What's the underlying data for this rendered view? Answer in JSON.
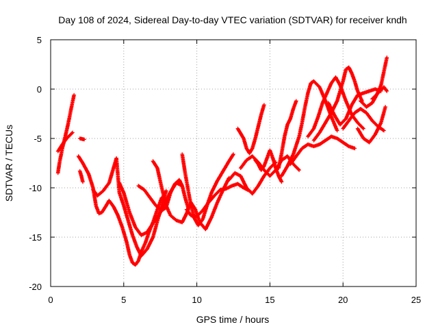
{
  "chart_data": {
    "type": "scatter",
    "title": "Day 108 of 2024, Sidereal Day-to-day VTEC variation (SDTVAR) for receiver kndh",
    "xlabel": "GPS time / hours",
    "ylabel": "SDTVAR / TECUs",
    "xlim": [
      0,
      25
    ],
    "ylim": [
      -20,
      5
    ],
    "x_ticks": [
      0,
      5,
      10,
      15,
      20,
      25
    ],
    "y_ticks": [
      -20,
      -15,
      -10,
      -5,
      0,
      5
    ],
    "grid": true,
    "marker": "+",
    "color": "#ff0000",
    "series": [
      {
        "x": [
          0.5,
          0.6,
          0.8,
          1.0,
          1.2,
          1.4,
          1.6
        ],
        "y": [
          -8.5,
          -7.5,
          -6.0,
          -4.8,
          -3.5,
          -2.0,
          -0.6
        ]
      },
      {
        "x": [
          0.5,
          0.8,
          1.1,
          1.5
        ],
        "y": [
          -6.3,
          -5.6,
          -5.0,
          -4.4
        ]
      },
      {
        "x": [
          2.0,
          2.3
        ],
        "y": [
          -5.0,
          -5.1
        ]
      },
      {
        "x": [
          2.0,
          2.1,
          2.2
        ],
        "y": [
          -8.3,
          -8.8,
          -9.4
        ]
      },
      {
        "x": [
          1.9,
          2.2,
          2.6,
          2.9,
          3.1,
          3.3,
          3.5,
          3.8,
          4.0,
          4.3,
          4.6,
          4.9,
          5.2,
          5.4,
          5.6,
          5.8,
          6.0,
          6.2,
          6.5,
          6.7,
          7.0,
          7.3,
          7.6
        ],
        "y": [
          -6.8,
          -7.5,
          -8.6,
          -10.0,
          -11.8,
          -12.6,
          -12.5,
          -11.8,
          -11.3,
          -11.9,
          -12.8,
          -14.0,
          -15.5,
          -16.8,
          -17.6,
          -17.8,
          -17.4,
          -16.5,
          -15.5,
          -14.6,
          -13.5,
          -12.2,
          -11.0
        ]
      },
      {
        "x": [
          2.9,
          3.2,
          3.6,
          4.0,
          4.3,
          4.5,
          4.7,
          5.0,
          5.3,
          5.6,
          5.9,
          6.2,
          6.6,
          7.0,
          7.3,
          7.6,
          7.9
        ],
        "y": [
          -10.2,
          -10.8,
          -10.3,
          -9.5,
          -8.0,
          -7.0,
          -10.5,
          -11.8,
          -13.3,
          -14.8,
          -16.0,
          -16.9,
          -16.2,
          -15.0,
          -13.4,
          -11.8,
          -10.3
        ]
      },
      {
        "x": [
          4.7,
          5.0,
          5.4,
          5.8,
          6.2,
          6.6,
          7.0,
          7.4,
          7.8,
          8.2,
          8.6,
          9.0
        ],
        "y": [
          -9.5,
          -10.5,
          -12.5,
          -14.0,
          -14.8,
          -14.5,
          -13.6,
          -12.8,
          -11.6,
          -10.4,
          -9.5,
          -9.8
        ]
      },
      {
        "x": [
          6.0,
          6.4,
          6.8,
          7.2,
          7.6,
          7.9,
          8.2,
          8.5,
          8.8,
          9.0,
          9.2,
          9.4
        ],
        "y": [
          -9.8,
          -10.2,
          -11.0,
          -11.8,
          -12.3,
          -12.0,
          -10.5,
          -9.6,
          -9.2,
          -9.8,
          -11.0,
          -12.0
        ]
      },
      {
        "x": [
          7.0,
          7.3,
          7.6,
          7.9,
          8.2,
          8.6,
          9.0,
          9.3,
          9.6,
          9.9,
          10.2,
          10.6,
          11.0,
          11.4,
          11.8,
          12.2
        ],
        "y": [
          -7.3,
          -8.0,
          -10.0,
          -11.8,
          -12.8,
          -13.3,
          -13.5,
          -12.6,
          -11.5,
          -12.2,
          -13.5,
          -14.2,
          -13.0,
          -11.5,
          -10.2,
          -9.0
        ]
      },
      {
        "x": [
          9.0,
          9.2,
          9.5,
          9.8,
          10.1,
          10.4,
          10.7,
          11.0,
          11.4,
          11.8,
          12.2,
          12.5
        ],
        "y": [
          -6.6,
          -8.5,
          -11.0,
          -13.0,
          -13.8,
          -13.2,
          -11.8,
          -10.5,
          -9.3,
          -8.3,
          -7.3,
          -6.6
        ]
      },
      {
        "x": [
          9.3,
          9.6,
          10.0,
          10.4,
          10.8,
          11.2,
          11.6,
          12.0,
          12.4,
          12.8,
          13.2,
          13.6
        ],
        "y": [
          -12.2,
          -12.8,
          -12.9,
          -12.3,
          -11.5,
          -10.8,
          -10.2,
          -10.1,
          -9.8,
          -9.6,
          -10.0,
          -10.3
        ]
      },
      {
        "x": [
          12.2,
          12.6,
          13.0,
          13.4,
          13.8,
          14.2,
          14.6,
          15.0,
          15.4
        ],
        "y": [
          -9.2,
          -8.5,
          -8.8,
          -10.0,
          -10.6,
          -9.8,
          -8.8,
          -8.0,
          -7.4
        ]
      },
      {
        "x": [
          12.8,
          13.0,
          13.2,
          13.4,
          13.6,
          13.8,
          14.0,
          14.2,
          14.4,
          14.6
        ],
        "y": [
          -4.0,
          -4.5,
          -5.0,
          -6.0,
          -6.5,
          -6.0,
          -5.0,
          -3.8,
          -2.6,
          -1.6
        ]
      },
      {
        "x": [
          13.0,
          13.4,
          13.8,
          14.2,
          14.6,
          15.0,
          15.4,
          15.8,
          16.2,
          16.6,
          17.0
        ],
        "y": [
          -8.0,
          -7.2,
          -6.8,
          -7.4,
          -8.2,
          -8.8,
          -8.2,
          -7.2,
          -6.8,
          -7.6,
          -8.2
        ]
      },
      {
        "x": [
          14.0,
          14.2,
          14.4,
          14.6,
          14.8,
          15.0,
          15.2,
          15.4,
          15.6,
          15.8
        ],
        "y": [
          -7.2,
          -7.6,
          -8.2,
          -7.8,
          -7.0,
          -6.2,
          -7.0,
          -8.0,
          -8.8,
          -9.4
        ]
      },
      {
        "x": [
          15.6,
          15.8,
          16.0,
          16.2,
          16.4,
          16.6,
          16.8
        ],
        "y": [
          -8.0,
          -6.5,
          -4.8,
          -3.6,
          -3.0,
          -2.0,
          -1.2
        ]
      },
      {
        "x": [
          15.8,
          16.2,
          16.6,
          17.0,
          17.2,
          17.4,
          17.6,
          17.8,
          18.0,
          18.4,
          18.8,
          19.2,
          19.6
        ],
        "y": [
          -8.8,
          -7.8,
          -6.6,
          -4.8,
          -3.4,
          -1.8,
          -0.4,
          0.6,
          0.8,
          0.2,
          -1.2,
          -2.8,
          -4.2
        ]
      },
      {
        "x": [
          16.4,
          16.8,
          17.2,
          17.6,
          18.0,
          18.4,
          18.8,
          19.2,
          19.6,
          20.0,
          20.4,
          20.8
        ],
        "y": [
          -7.6,
          -6.8,
          -6.0,
          -5.6,
          -5.8,
          -5.6,
          -5.2,
          -4.8,
          -5.0,
          -5.4,
          -5.8,
          -6.0
        ]
      },
      {
        "x": [
          17.6,
          18.0,
          18.3,
          18.6,
          18.9,
          19.2,
          19.5,
          19.8,
          20.2,
          20.6,
          21.0,
          21.4
        ],
        "y": [
          -4.8,
          -4.0,
          -2.8,
          -1.4,
          -0.4,
          0.6,
          1.2,
          0.4,
          -1.2,
          -2.6,
          -3.4,
          -4.0
        ]
      },
      {
        "x": [
          18.0,
          18.4,
          18.8,
          19.2,
          19.6,
          20.0,
          20.2,
          20.4,
          20.6,
          20.8,
          21.0,
          21.3
        ],
        "y": [
          -5.2,
          -4.4,
          -3.4,
          -2.4,
          -1.2,
          0.8,
          2.0,
          2.2,
          1.6,
          0.8,
          -0.2,
          -1.2
        ]
      },
      {
        "x": [
          19.0,
          19.4,
          19.8,
          20.2,
          20.6,
          21.0,
          21.4,
          21.8,
          22.2,
          22.6
        ],
        "y": [
          -1.4,
          -2.6,
          -3.6,
          -3.0,
          -1.6,
          -0.6,
          -0.4,
          -0.2,
          0.0,
          -0.2
        ]
      },
      {
        "x": [
          20.0,
          20.4,
          20.8,
          21.2,
          21.6,
          22.0,
          22.4,
          22.8
        ],
        "y": [
          -4.0,
          -3.2,
          -2.4,
          -2.0,
          -2.4,
          -3.2,
          -3.8,
          -4.2
        ]
      },
      {
        "x": [
          21.0,
          21.4,
          21.8,
          22.2,
          22.6,
          22.9
        ],
        "y": [
          -4.0,
          -5.0,
          -5.4,
          -4.6,
          -3.4,
          -1.8
        ]
      },
      {
        "x": [
          21.2,
          21.6,
          22.0,
          22.3,
          22.6,
          22.8,
          23.0
        ],
        "y": [
          -1.2,
          -1.8,
          -1.4,
          -0.6,
          0.4,
          1.8,
          3.2
        ]
      },
      {
        "x": [
          22.0,
          22.4,
          22.8,
          23.0
        ],
        "y": [
          -1.0,
          -0.4,
          0.2,
          -0.2
        ]
      }
    ]
  }
}
